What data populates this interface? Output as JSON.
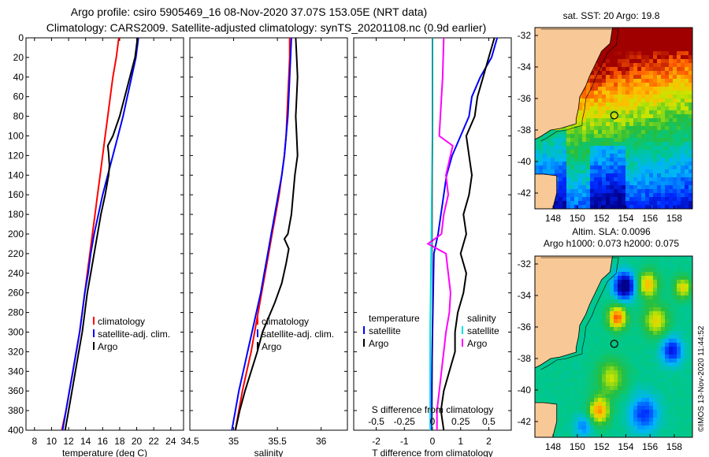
{
  "title": {
    "line1": "Argo profile: csiro 5905469_16 08-Nov-2020 37.07S 153.05E (NRT data)",
    "line2": "Climatology: CARS2009. Satellite-adjusted climatology: synTS_20201108.nc (0.9d earlier)"
  },
  "colors": {
    "climatology": "#ff0000",
    "satellite": "#0000ff",
    "argo": "#000000",
    "sat_salinity": "#00e0e0",
    "argo_salinity": "#ff00ff",
    "land": "#f8c896"
  },
  "chart_data": [
    {
      "type": "line",
      "id": "temperature",
      "xlabel": "temperature (deg C)",
      "ylabel": "",
      "xlim": [
        7,
        25.5
      ],
      "ylim": [
        400,
        0
      ],
      "xticks": [
        "8",
        "10",
        "12",
        "14",
        "16",
        "18",
        "20",
        "22",
        "24"
      ],
      "yticks": [
        "0",
        "20",
        "40",
        "60",
        "80",
        "100",
        "120",
        "140",
        "160",
        "180",
        "200",
        "220",
        "240",
        "260",
        "280",
        "300",
        "320",
        "340",
        "360",
        "380",
        "400"
      ],
      "legend": [
        "climatology",
        "satellite-adj. clim.",
        "Argo"
      ],
      "series": [
        {
          "name": "climatology",
          "color": "#ff0000",
          "points": [
            [
              17.9,
              0
            ],
            [
              17.6,
              20
            ],
            [
              17.2,
              40
            ],
            [
              16.9,
              60
            ],
            [
              16.6,
              80
            ],
            [
              16.3,
              100
            ],
            [
              16.0,
              120
            ],
            [
              15.7,
              140
            ],
            [
              15.4,
              160
            ],
            [
              15.1,
              180
            ],
            [
              14.8,
              200
            ],
            [
              14.5,
              220
            ],
            [
              14.2,
              240
            ],
            [
              13.9,
              260
            ],
            [
              13.6,
              280
            ],
            [
              13.3,
              300
            ],
            [
              12.9,
              320
            ],
            [
              12.5,
              340
            ],
            [
              12.1,
              360
            ],
            [
              11.7,
              380
            ],
            [
              11.2,
              400
            ]
          ]
        },
        {
          "name": "satellite-adj. clim.",
          "color": "#0000ff",
          "points": [
            [
              20.2,
              0
            ],
            [
              19.9,
              20
            ],
            [
              19.4,
              40
            ],
            [
              18.9,
              60
            ],
            [
              18.4,
              80
            ],
            [
              17.8,
              100
            ],
            [
              17.2,
              120
            ],
            [
              16.6,
              140
            ],
            [
              16.0,
              160
            ],
            [
              15.5,
              180
            ],
            [
              15.0,
              200
            ],
            [
              14.6,
              220
            ],
            [
              14.3,
              240
            ],
            [
              13.9,
              260
            ],
            [
              13.6,
              280
            ],
            [
              13.3,
              300
            ],
            [
              12.9,
              320
            ],
            [
              12.5,
              340
            ],
            [
              12.1,
              360
            ],
            [
              11.7,
              380
            ],
            [
              11.3,
              400
            ]
          ]
        },
        {
          "name": "Argo",
          "color": "#000000",
          "points": [
            [
              20.1,
              0
            ],
            [
              19.8,
              20
            ],
            [
              19.2,
              40
            ],
            [
              18.6,
              60
            ],
            [
              18.0,
              80
            ],
            [
              17.2,
              100
            ],
            [
              16.6,
              110
            ],
            [
              16.7,
              118
            ],
            [
              16.8,
              130
            ],
            [
              16.7,
              140
            ],
            [
              16.3,
              160
            ],
            [
              15.8,
              180
            ],
            [
              15.4,
              200
            ],
            [
              15.0,
              220
            ],
            [
              14.6,
              240
            ],
            [
              14.2,
              260
            ],
            [
              13.9,
              280
            ],
            [
              13.6,
              300
            ],
            [
              13.2,
              320
            ],
            [
              12.8,
              340
            ],
            [
              12.4,
              360
            ],
            [
              12.0,
              380
            ],
            [
              11.6,
              400
            ]
          ]
        }
      ]
    },
    {
      "type": "line",
      "id": "salinity",
      "xlabel": "salinity",
      "ylabel": "",
      "xlim": [
        34.5,
        36.3
      ],
      "ylim": [
        400,
        0
      ],
      "xticks": [
        "34.5",
        "35",
        "35.5",
        "36"
      ],
      "legend": [
        "climatology",
        "satellite-adj. clim.",
        "Argo"
      ],
      "series": [
        {
          "name": "climatology",
          "color": "#ff0000",
          "points": [
            [
              35.64,
              0
            ],
            [
              35.64,
              20
            ],
            [
              35.63,
              40
            ],
            [
              35.62,
              60
            ],
            [
              35.61,
              80
            ],
            [
              35.6,
              100
            ],
            [
              35.58,
              120
            ],
            [
              35.55,
              140
            ],
            [
              35.52,
              160
            ],
            [
              35.48,
              180
            ],
            [
              35.44,
              200
            ],
            [
              35.4,
              220
            ],
            [
              35.36,
              240
            ],
            [
              35.32,
              260
            ],
            [
              35.28,
              280
            ],
            [
              35.24,
              300
            ],
            [
              35.2,
              320
            ],
            [
              35.15,
              340
            ],
            [
              35.1,
              360
            ],
            [
              35.06,
              380
            ],
            [
              35.02,
              400
            ]
          ]
        },
        {
          "name": "satellite-adj. clim.",
          "color": "#0000ff",
          "points": [
            [
              35.66,
              0
            ],
            [
              35.65,
              20
            ],
            [
              35.64,
              40
            ],
            [
              35.63,
              60
            ],
            [
              35.62,
              80
            ],
            [
              35.6,
              100
            ],
            [
              35.58,
              120
            ],
            [
              35.55,
              140
            ],
            [
              35.51,
              160
            ],
            [
              35.47,
              180
            ],
            [
              35.43,
              200
            ],
            [
              35.39,
              220
            ],
            [
              35.35,
              240
            ],
            [
              35.31,
              260
            ],
            [
              35.26,
              280
            ],
            [
              35.21,
              300
            ],
            [
              35.16,
              320
            ],
            [
              35.11,
              340
            ],
            [
              35.06,
              360
            ],
            [
              35.02,
              380
            ],
            [
              34.98,
              400
            ]
          ]
        },
        {
          "name": "Argo",
          "color": "#000000",
          "points": [
            [
              35.71,
              0
            ],
            [
              35.72,
              20
            ],
            [
              35.73,
              40
            ],
            [
              35.72,
              60
            ],
            [
              35.71,
              80
            ],
            [
              35.72,
              100
            ],
            [
              35.73,
              120
            ],
            [
              35.7,
              140
            ],
            [
              35.68,
              160
            ],
            [
              35.66,
              180
            ],
            [
              35.62,
              200
            ],
            [
              35.58,
              205
            ],
            [
              35.63,
              215
            ],
            [
              35.6,
              230
            ],
            [
              35.55,
              250
            ],
            [
              35.47,
              270
            ],
            [
              35.4,
              285
            ],
            [
              35.33,
              300
            ],
            [
              35.27,
              320
            ],
            [
              35.2,
              340
            ],
            [
              35.13,
              360
            ],
            [
              35.07,
              380
            ],
            [
              35.02,
              400
            ]
          ]
        }
      ]
    },
    {
      "type": "line",
      "id": "difference",
      "xlabel": "T difference from climatology",
      "x2label": "S difference from climatology",
      "ylabel": "",
      "xlim": [
        -2.8,
        2.8
      ],
      "ylim": [
        400,
        0
      ],
      "xticks": [
        "-2",
        "-1",
        "0",
        "1",
        "2"
      ],
      "x2ticks": [
        "-0.5",
        "-0.25",
        "0",
        "0.25",
        "0.5"
      ],
      "legend_temperature_title": "temperature",
      "legend_salinity_title": "salinity",
      "legend_temperature": [
        "satellite",
        "Argo"
      ],
      "legend_salinity": [
        "satellite",
        "Argo"
      ],
      "series": [
        {
          "name": "temperature satellite",
          "color": "#0000ff",
          "points": [
            [
              2.3,
              0
            ],
            [
              2.1,
              20
            ],
            [
              1.7,
              40
            ],
            [
              1.4,
              60
            ],
            [
              1.3,
              80
            ],
            [
              1.0,
              100
            ],
            [
              0.7,
              120
            ],
            [
              0.5,
              140
            ],
            [
              0.4,
              160
            ],
            [
              0.3,
              180
            ],
            [
              0.2,
              200
            ],
            [
              0.05,
              220
            ],
            [
              0.0,
              300
            ],
            [
              -0.05,
              400
            ]
          ]
        },
        {
          "name": "temperature Argo",
          "color": "#000000",
          "points": [
            [
              2.2,
              0
            ],
            [
              2.0,
              20
            ],
            [
              1.8,
              40
            ],
            [
              1.6,
              60
            ],
            [
              1.5,
              80
            ],
            [
              1.2,
              100
            ],
            [
              1.3,
              120
            ],
            [
              1.4,
              140
            ],
            [
              1.3,
              160
            ],
            [
              1.1,
              180
            ],
            [
              1.2,
              200
            ],
            [
              1.0,
              220
            ],
            [
              1.2,
              240
            ],
            [
              1.1,
              260
            ],
            [
              0.9,
              280
            ],
            [
              0.8,
              300
            ],
            [
              0.8,
              320
            ],
            [
              0.6,
              340
            ],
            [
              0.4,
              360
            ],
            [
              0.3,
              380
            ],
            [
              0.4,
              400
            ]
          ]
        },
        {
          "name": "salinity satellite",
          "color": "#00e0e0",
          "points": [
            [
              0.0,
              0
            ],
            [
              0.0,
              100
            ],
            [
              -0.01,
              200
            ],
            [
              -0.02,
              300
            ],
            [
              -0.02,
              400
            ]
          ]
        },
        {
          "name": "salinity Argo",
          "color": "#ff00ff",
          "points": [
            [
              0.1,
              0
            ],
            [
              0.09,
              40
            ],
            [
              0.07,
              80
            ],
            [
              0.06,
              100
            ],
            [
              0.18,
              110
            ],
            [
              0.12,
              140
            ],
            [
              0.14,
              160
            ],
            [
              0.1,
              180
            ],
            [
              0.08,
              200
            ],
            [
              -0.04,
              210
            ],
            [
              0.12,
              220
            ],
            [
              0.14,
              240
            ],
            [
              0.16,
              260
            ],
            [
              0.15,
              280
            ],
            [
              0.12,
              300
            ],
            [
              0.1,
              320
            ],
            [
              0.08,
              340
            ],
            [
              0.06,
              360
            ],
            [
              0.04,
              380
            ],
            [
              0.04,
              400
            ]
          ]
        }
      ]
    }
  ],
  "maps": {
    "sst": {
      "title": "sat. SST: 20 Argo: 19.8",
      "yticks": [
        "-32",
        "-34",
        "-36",
        "-38",
        "-40",
        "-42"
      ],
      "xticks": [
        "148",
        "150",
        "152",
        "154",
        "156",
        "158"
      ],
      "lon_range": [
        146.5,
        159.5
      ],
      "lat_range": [
        -43,
        -31.5
      ],
      "argo_lon": 153.05,
      "argo_lat": -37.07
    },
    "sla": {
      "title1": "Altim. SLA: 0.0096",
      "title2": "Argo h1000: 0.073 h2000: 0.075",
      "yticks": [
        "-32",
        "-34",
        "-36",
        "-38",
        "-40",
        "-42"
      ],
      "xticks": [
        "148",
        "150",
        "152",
        "154",
        "156",
        "158"
      ],
      "lon_range": [
        146.5,
        159.5
      ],
      "lat_range": [
        -43,
        -31.5
      ],
      "argo_lon": 153.05,
      "argo_lat": -37.07
    }
  },
  "footer": {
    "copyright": "©IMOS 13-Nov-2020 11:44:52"
  }
}
